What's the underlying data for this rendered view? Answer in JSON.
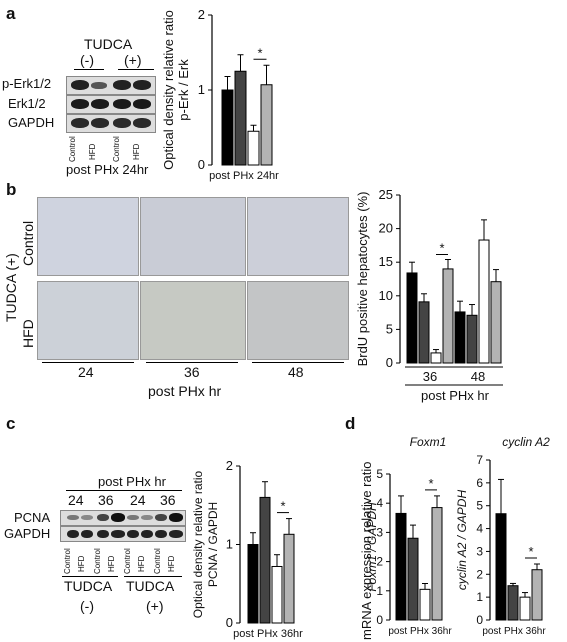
{
  "panels": {
    "a": {
      "letter": "a",
      "treatment_label": "TUDCA",
      "minus": "(-)",
      "plus": "(+)",
      "blot_rows": [
        "p-Erk1/2",
        "Erk1/2",
        "GAPDH"
      ],
      "lane_labels": [
        "Control",
        "HFD",
        "Control",
        "HFD"
      ],
      "caption": "post PHx 24hr"
    },
    "b": {
      "letter": "b",
      "side_label": "TUDCA (+)",
      "row_labels": [
        "Control",
        "HFD"
      ],
      "col_labels": [
        "24",
        "36",
        "48"
      ],
      "xlabel": "post PHx hr"
    },
    "c": {
      "letter": "c",
      "header": "post PHx hr",
      "timepoints": [
        "24",
        "36",
        "24",
        "36"
      ],
      "blot_rows": [
        "PCNA",
        "GAPDH"
      ],
      "lane_labels": [
        "Control",
        "HFD",
        "Control",
        "HFD",
        "Control",
        "HFD",
        "Control",
        "HFD"
      ],
      "group_labels": [
        "TUDCA",
        "TUDCA"
      ],
      "group_signs": [
        "(-)",
        "(+)"
      ]
    },
    "d": {
      "letter": "d",
      "shared_ylabel": "mRNA expression relative ratio"
    }
  },
  "chart_data": [
    {
      "id": "a",
      "type": "bar",
      "title": "",
      "ylabel": "Optical density relative ratio",
      "ylabel2": "p-Erk / Erk",
      "xlabel": "post PHx 24hr",
      "ylim": [
        0,
        2
      ],
      "yticks": [
        "0",
        "1",
        "2"
      ],
      "series_colors": [
        "#000000",
        "#444444",
        "#ffffff",
        "#b3b3b3"
      ],
      "values": [
        1.0,
        1.25,
        0.45,
        1.07
      ],
      "errors": [
        0.18,
        0.22,
        0.08,
        0.26
      ],
      "sig": "*"
    },
    {
      "id": "b",
      "type": "bar",
      "title": "",
      "ylabel": "BrdU positive hepatocytes (%)",
      "xlabel": "post PHx hr",
      "categories": [
        "36",
        "48"
      ],
      "ylim": [
        0,
        25
      ],
      "yticks": [
        "0",
        "5",
        "10",
        "15",
        "20",
        "25"
      ],
      "series_colors": [
        "#000000",
        "#444444",
        "#ffffff",
        "#b3b3b3"
      ],
      "groups": [
        {
          "values": [
            13.4,
            9.1,
            1.5,
            14.0
          ],
          "errors": [
            1.6,
            1.2,
            0.5,
            1.4
          ]
        },
        {
          "values": [
            7.6,
            7.1,
            18.3,
            12.1
          ],
          "errors": [
            1.6,
            1.6,
            3.0,
            1.8
          ]
        }
      ],
      "sig": "*"
    },
    {
      "id": "c",
      "type": "bar",
      "title": "",
      "ylabel": "Optical density relative ratio",
      "ylabel2": "PCNA / GAPDH",
      "xlabel": "post PHx 36hr",
      "ylim": [
        0,
        2
      ],
      "yticks": [
        "0",
        "1",
        "2"
      ],
      "series_colors": [
        "#000000",
        "#444444",
        "#ffffff",
        "#b3b3b3"
      ],
      "values": [
        1.0,
        1.6,
        0.72,
        1.13
      ],
      "errors": [
        0.15,
        0.2,
        0.15,
        0.2
      ],
      "sig": "*"
    },
    {
      "id": "d1",
      "type": "bar",
      "title": "Foxm1",
      "ylabel": "Foxm1 / GAPDH",
      "xlabel": "post PHx 36hr",
      "ylim": [
        0,
        5
      ],
      "yticks": [
        "0",
        "1",
        "2",
        "3",
        "4",
        "5"
      ],
      "series_colors": [
        "#000000",
        "#444444",
        "#ffffff",
        "#b3b3b3"
      ],
      "values": [
        3.65,
        2.8,
        1.05,
        3.85
      ],
      "errors": [
        0.6,
        0.45,
        0.2,
        0.4
      ],
      "sig": "*"
    },
    {
      "id": "d2",
      "type": "bar",
      "title": "cyclin A2",
      "ylabel": "cyclin A2 / GAPDH",
      "xlabel": "post PHx 36hr",
      "ylim": [
        0,
        7
      ],
      "yticks": [
        "0",
        "1",
        "2",
        "3",
        "4",
        "5",
        "6",
        "7"
      ],
      "series_colors": [
        "#000000",
        "#444444",
        "#ffffff",
        "#b3b3b3"
      ],
      "values": [
        4.65,
        1.5,
        1.0,
        2.2
      ],
      "errors": [
        1.5,
        0.1,
        0.2,
        0.25
      ],
      "sig": "*"
    }
  ]
}
